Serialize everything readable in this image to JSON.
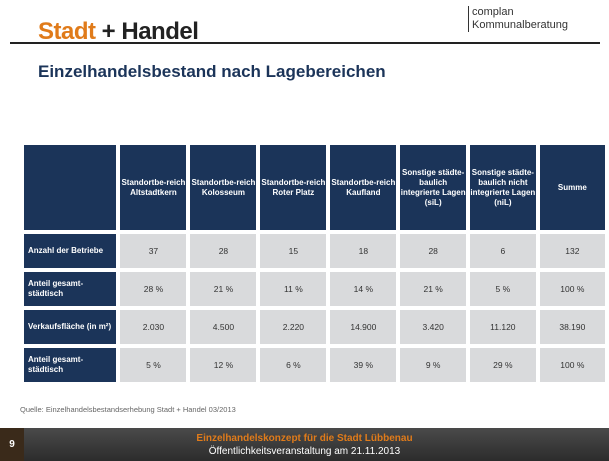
{
  "header": {
    "logo_left": "Stadt",
    "logo_plus": "+",
    "logo_right": "Handel",
    "partner_line1": "complan",
    "partner_line2": "Kommunalberatung"
  },
  "title": "Einzelhandelsbestand nach Lagebereichen",
  "table": {
    "columns": [
      "Standortbe-reich Altstadtkern",
      "Standortbe-reich Kolosseum",
      "Standortbe-reich Roter Platz",
      "Standortbe-reich Kaufland",
      "Sonstige städte-baulich integrierte Lagen (siL)",
      "Sonstige städte-baulich nicht integrierte Lagen (niL)",
      "Summe"
    ],
    "rows": [
      {
        "label": "Anzahl der Betriebe",
        "cells": [
          "37",
          "28",
          "15",
          "18",
          "28",
          "6",
          "132"
        ]
      },
      {
        "label": "Anteil gesamt-städtisch",
        "cells": [
          "28 %",
          "21 %",
          "11 %",
          "14 %",
          "21 %",
          "5 %",
          "100 %"
        ]
      },
      {
        "label": "Verkaufsfläche (in m²)",
        "cells": [
          "2.030",
          "4.500",
          "2.220",
          "14.900",
          "3.420",
          "11.120",
          "38.190"
        ]
      },
      {
        "label": "Anteil gesamt-städtisch",
        "cells": [
          "5 %",
          "12 %",
          "6 %",
          "39 %",
          "9 %",
          "29 %",
          "100 %"
        ]
      }
    ]
  },
  "source": "Quelle: Einzelhandelsbestandserhebung Stadt + Handel 03/2013",
  "footer": {
    "page": "9",
    "line1": "Einzelhandelskonzept für die Stadt Lübbenau",
    "line2": "Öffentlichkeitsveranstaltung am 21.11.2013"
  }
}
